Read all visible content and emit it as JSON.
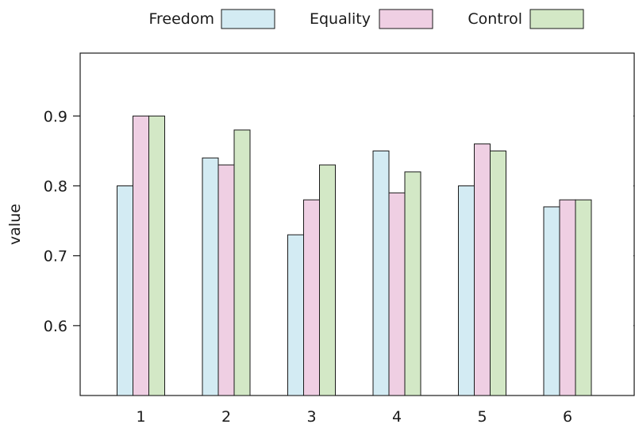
{
  "chart_data": {
    "type": "bar",
    "categories": [
      "1",
      "2",
      "3",
      "4",
      "5",
      "6"
    ],
    "series": [
      {
        "name": "Freedom",
        "color": "#d3ebf3",
        "values": [
          0.8,
          0.84,
          0.73,
          0.85,
          0.8,
          0.77
        ]
      },
      {
        "name": "Equality",
        "color": "#efcfe3",
        "values": [
          0.9,
          0.83,
          0.78,
          0.79,
          0.86,
          0.78
        ]
      },
      {
        "name": "Control",
        "color": "#d3e8c6",
        "values": [
          0.9,
          0.88,
          0.83,
          0.82,
          0.85,
          0.78
        ]
      }
    ],
    "xlabel": "",
    "ylabel": "value",
    "ylim": [
      0.5,
      0.99
    ],
    "yticks": [
      0.6,
      0.7,
      0.8,
      0.9
    ],
    "ytick_labels": [
      "0.6",
      "0.7",
      "0.8",
      "0.9"
    ],
    "legend_position": "top",
    "grid": false
  }
}
